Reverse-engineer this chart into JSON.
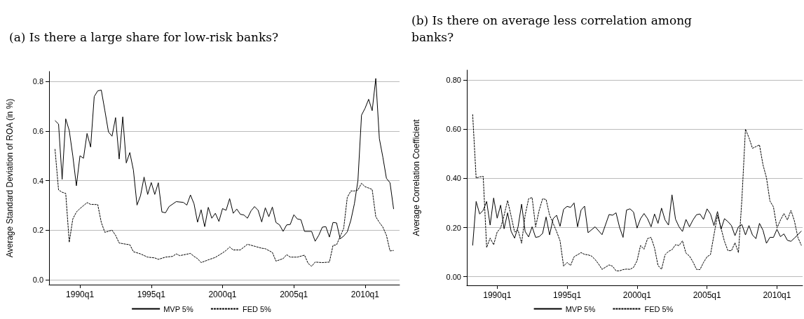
{
  "chart_data": [
    {
      "type": "line",
      "title": "(a) Is there a large share for low-risk banks?",
      "ylabel": "Average Standard Deviation of ROA (in %)",
      "xlim": [
        "1987-11",
        "2012-06"
      ],
      "xticks": [
        {
          "value": "1990-01",
          "label": "1990q1"
        },
        {
          "value": "1995-01",
          "label": "1995q1"
        },
        {
          "value": "2000-01",
          "label": "2000q1"
        },
        {
          "value": "2005-01",
          "label": "2005q1"
        },
        {
          "value": "2010-01",
          "label": "2010q1"
        }
      ],
      "ylim": [
        -0.02,
        0.84
      ],
      "yticks": [
        {
          "value": 0,
          "label": "0.0"
        },
        0.2,
        0.4,
        0.6,
        0.8
      ],
      "grid": "y",
      "legend": "bottom",
      "marker": "none",
      "series": [
        {
          "name": "MVP 5%",
          "color": "#000000",
          "line_style": "solid",
          "x": [
            "1988-04",
            "1988-07",
            "1988-10",
            "1989-01",
            "1989-04",
            "1989-07",
            "1989-10",
            "1990-01",
            "1990-04",
            "1990-07",
            "1990-10",
            "1991-01",
            "1991-04",
            "1991-07",
            "1991-10",
            "1992-01",
            "1992-04",
            "1992-07",
            "1992-10",
            "1993-01",
            "1993-04",
            "1993-07",
            "1993-10",
            "1994-01",
            "1994-04",
            "1994-07",
            "1994-10",
            "1995-01",
            "1995-04",
            "1995-07",
            "1995-10",
            "1996-01",
            "1996-04",
            "1996-10",
            "1997-04",
            "1997-07",
            "1997-10",
            "1998-01",
            "1998-04",
            "1998-07",
            "1998-10",
            "1999-01",
            "1999-04",
            "1999-07",
            "1999-10",
            "2000-01",
            "2000-04",
            "2000-07",
            "2000-10",
            "2001-01",
            "2001-04",
            "2001-07",
            "2001-10",
            "2002-01",
            "2002-04",
            "2002-07",
            "2002-10",
            "2003-01",
            "2003-04",
            "2003-07",
            "2003-10",
            "2004-01",
            "2004-04",
            "2004-07",
            "2004-10",
            "2005-01",
            "2005-04",
            "2005-07",
            "2005-10",
            "2006-04",
            "2006-07",
            "2006-10",
            "2007-01",
            "2007-04",
            "2007-07",
            "2007-10",
            "2008-01",
            "2008-04",
            "2008-07",
            "2008-10",
            "2009-01",
            "2009-04",
            "2009-07",
            "2009-10",
            "2010-01",
            "2010-04",
            "2010-07",
            "2010-10",
            "2011-01",
            "2011-04",
            "2011-07",
            "2011-10",
            "2012-01"
          ],
          "values": [
            0.642,
            0.628,
            0.405,
            0.649,
            0.602,
            0.5,
            0.379,
            0.5,
            0.49,
            0.59,
            0.535,
            0.739,
            0.762,
            0.765,
            0.682,
            0.596,
            0.579,
            0.654,
            0.487,
            0.657,
            0.471,
            0.513,
            0.442,
            0.301,
            0.339,
            0.414,
            0.344,
            0.392,
            0.344,
            0.391,
            0.273,
            0.27,
            0.295,
            0.315,
            0.312,
            0.301,
            0.342,
            0.306,
            0.232,
            0.282,
            0.214,
            0.292,
            0.248,
            0.268,
            0.235,
            0.287,
            0.28,
            0.327,
            0.268,
            0.285,
            0.264,
            0.261,
            0.248,
            0.278,
            0.295,
            0.28,
            0.233,
            0.29,
            0.254,
            0.293,
            0.231,
            0.221,
            0.195,
            0.221,
            0.223,
            0.262,
            0.245,
            0.242,
            0.195,
            0.195,
            0.155,
            0.179,
            0.212,
            0.214,
            0.172,
            0.231,
            0.229,
            0.165,
            0.176,
            0.193,
            0.24,
            0.306,
            0.4,
            0.664,
            0.692,
            0.728,
            0.682,
            0.812,
            0.569,
            0.494,
            0.409,
            0.391,
            0.285
          ]
        },
        {
          "name": "FED 5%",
          "color": "#000000",
          "line_style": "dashed",
          "x": [
            "1988-04",
            "1988-07",
            "1988-10",
            "1989-01",
            "1989-04",
            "1989-07",
            "1989-10",
            "1990-01",
            "1990-07",
            "1990-10",
            "1991-04",
            "1991-07",
            "1991-10",
            "1992-04",
            "1992-07",
            "1992-10",
            "1993-04",
            "1993-07",
            "1993-10",
            "1994-04",
            "1994-10",
            "1995-04",
            "1995-07",
            "1996-01",
            "1996-07",
            "1996-10",
            "1997-01",
            "1997-10",
            "1998-01",
            "1998-04",
            "1998-07",
            "1999-01",
            "1999-07",
            "2000-01",
            "2000-04",
            "2000-07",
            "2000-10",
            "2001-04",
            "2001-10",
            "2002-04",
            "2002-10",
            "2003-01",
            "2003-07",
            "2003-10",
            "2004-01",
            "2004-04",
            "2004-07",
            "2004-10",
            "2005-04",
            "2005-10",
            "2006-01",
            "2006-04",
            "2006-07",
            "2007-01",
            "2007-07",
            "2007-10",
            "2008-01",
            "2008-04",
            "2008-07",
            "2008-10",
            "2009-01",
            "2009-04",
            "2009-07",
            "2009-10",
            "2010-01",
            "2010-04",
            "2010-07",
            "2010-10",
            "2011-01",
            "2011-04",
            "2011-07",
            "2011-10",
            "2012-01"
          ],
          "values": [
            0.527,
            0.362,
            0.353,
            0.348,
            0.151,
            0.245,
            0.273,
            0.287,
            0.311,
            0.304,
            0.303,
            0.231,
            0.191,
            0.2,
            0.179,
            0.148,
            0.143,
            0.141,
            0.113,
            0.104,
            0.091,
            0.088,
            0.082,
            0.091,
            0.094,
            0.104,
            0.097,
            0.106,
            0.094,
            0.085,
            0.069,
            0.08,
            0.09,
            0.108,
            0.118,
            0.132,
            0.12,
            0.12,
            0.143,
            0.135,
            0.127,
            0.125,
            0.11,
            0.075,
            0.08,
            0.085,
            0.101,
            0.091,
            0.091,
            0.099,
            0.066,
            0.054,
            0.071,
            0.069,
            0.071,
            0.138,
            0.141,
            0.174,
            0.207,
            0.332,
            0.358,
            0.358,
            0.362,
            0.389,
            0.375,
            0.37,
            0.364,
            0.254,
            0.231,
            0.212,
            0.179,
            0.116,
            0.118
          ]
        }
      ]
    },
    {
      "type": "line",
      "title": "(b) Is there on average less correlation among banks?",
      "ylabel": "Average Correlation Coefficient",
      "xlim": [
        "1987-11",
        "2011-11"
      ],
      "xticks": [
        {
          "value": "1990-01",
          "label": "1990q1"
        },
        {
          "value": "1995-01",
          "label": "1995q1"
        },
        {
          "value": "2000-01",
          "label": "2000q1"
        },
        {
          "value": "2005-01",
          "label": "2005q1"
        },
        {
          "value": "2010-01",
          "label": "2010q1"
        }
      ],
      "ylim": [
        -0.035,
        0.84
      ],
      "yticks": [
        {
          "value": 0,
          "label": "0.00"
        },
        {
          "value": 0.2,
          "label": "0.20"
        },
        {
          "value": 0.4,
          "label": "0.40"
        },
        {
          "value": 0.6,
          "label": "0.60"
        },
        {
          "value": 0.8,
          "label": "0.80"
        }
      ],
      "grid": "y",
      "legend": "bottom",
      "marker": "none",
      "series": [
        {
          "name": "MVP 5%",
          "color": "#000000",
          "line_style": "solid",
          "x": [
            "1988-04",
            "1988-07",
            "1988-10",
            "1989-01",
            "1989-04",
            "1989-07",
            "1989-10",
            "1990-01",
            "1990-04",
            "1990-07",
            "1990-10",
            "1991-01",
            "1991-04",
            "1991-07",
            "1991-10",
            "1992-01",
            "1992-04",
            "1992-07",
            "1992-10",
            "1993-01",
            "1993-04",
            "1993-07",
            "1993-10",
            "1994-01",
            "1994-04",
            "1994-07",
            "1994-10",
            "1995-01",
            "1995-04",
            "1995-07",
            "1995-10",
            "1996-01",
            "1996-04",
            "1996-07",
            "1997-01",
            "1997-07",
            "1998-01",
            "1998-04",
            "1998-07",
            "1998-10",
            "1999-01",
            "1999-04",
            "1999-07",
            "1999-10",
            "2000-01",
            "2000-04",
            "2000-07",
            "2000-10",
            "2001-01",
            "2001-04",
            "2001-07",
            "2001-10",
            "2002-01",
            "2002-04",
            "2002-07",
            "2002-10",
            "2003-01",
            "2003-04",
            "2003-07",
            "2003-10",
            "2004-01",
            "2004-04",
            "2004-07",
            "2004-10",
            "2005-01",
            "2005-04",
            "2005-07",
            "2005-10",
            "2006-01",
            "2006-04",
            "2006-07",
            "2006-10",
            "2007-01",
            "2007-04",
            "2007-07",
            "2007-10",
            "2008-01",
            "2008-04",
            "2008-07",
            "2008-10",
            "2009-01",
            "2009-04",
            "2009-07",
            "2009-10",
            "2010-01",
            "2010-04",
            "2010-07",
            "2010-10",
            "2011-01",
            "2011-04",
            "2011-07",
            "2011-10"
          ],
          "values": [
            0.127,
            0.306,
            0.255,
            0.27,
            0.306,
            0.21,
            0.32,
            0.238,
            0.291,
            0.195,
            0.26,
            0.184,
            0.157,
            0.203,
            0.295,
            0.184,
            0.162,
            0.203,
            0.16,
            0.163,
            0.176,
            0.243,
            0.17,
            0.236,
            0.25,
            0.205,
            0.274,
            0.286,
            0.282,
            0.3,
            0.203,
            0.271,
            0.287,
            0.179,
            0.203,
            0.171,
            0.253,
            0.25,
            0.26,
            0.201,
            0.16,
            0.271,
            0.276,
            0.263,
            0.198,
            0.236,
            0.257,
            0.236,
            0.203,
            0.255,
            0.217,
            0.279,
            0.231,
            0.21,
            0.333,
            0.234,
            0.203,
            0.184,
            0.233,
            0.203,
            0.231,
            0.252,
            0.255,
            0.233,
            0.276,
            0.255,
            0.208,
            0.265,
            0.193,
            0.236,
            0.224,
            0.208,
            0.167,
            0.203,
            0.212,
            0.17,
            0.208,
            0.17,
            0.155,
            0.217,
            0.189,
            0.136,
            0.16,
            0.16,
            0.193,
            0.163,
            0.174,
            0.148,
            0.144,
            0.157,
            0.171,
            0.186
          ]
        },
        {
          "name": "FED 5%",
          "color": "#000000",
          "line_style": "dashed",
          "x": [
            "1988-04",
            "1988-07",
            "1988-10",
            "1989-01",
            "1989-04",
            "1989-07",
            "1989-10",
            "1990-01",
            "1990-04",
            "1990-07",
            "1990-10",
            "1991-01",
            "1991-04",
            "1991-07",
            "1991-10",
            "1992-01",
            "1992-04",
            "1992-07",
            "1992-10",
            "1993-01",
            "1993-04",
            "1993-07",
            "1993-10",
            "1994-01",
            "1994-04",
            "1994-07",
            "1994-10",
            "1995-01",
            "1995-04",
            "1995-07",
            "1996-01",
            "1996-04",
            "1996-07",
            "1996-10",
            "1997-01",
            "1997-04",
            "1997-07",
            "1997-10",
            "1998-01",
            "1998-04",
            "1998-07",
            "1998-10",
            "1999-01",
            "1999-04",
            "1999-07",
            "1999-10",
            "2000-01",
            "2000-04",
            "2000-07",
            "2000-10",
            "2001-01",
            "2001-04",
            "2001-07",
            "2001-10",
            "2002-01",
            "2002-04",
            "2002-07",
            "2002-10",
            "2003-01",
            "2003-04",
            "2003-07",
            "2003-10",
            "2004-01",
            "2004-04",
            "2004-07",
            "2004-10",
            "2005-01",
            "2005-04",
            "2005-07",
            "2005-10",
            "2006-01",
            "2006-04",
            "2006-07",
            "2006-10",
            "2007-01",
            "2007-04",
            "2007-07",
            "2007-10",
            "2008-01",
            "2008-04",
            "2008-07",
            "2008-10",
            "2009-01",
            "2009-04",
            "2009-07",
            "2009-10",
            "2010-01",
            "2010-04",
            "2010-07",
            "2010-10",
            "2011-01",
            "2011-04",
            "2011-07",
            "2011-10"
          ],
          "values": [
            0.66,
            0.401,
            0.406,
            0.408,
            0.119,
            0.157,
            0.13,
            0.182,
            0.198,
            0.25,
            0.31,
            0.246,
            0.182,
            0.189,
            0.136,
            0.25,
            0.317,
            0.322,
            0.203,
            0.27,
            0.317,
            0.314,
            0.25,
            0.217,
            0.184,
            0.146,
            0.043,
            0.058,
            0.046,
            0.081,
            0.098,
            0.091,
            0.089,
            0.084,
            0.07,
            0.052,
            0.03,
            0.039,
            0.048,
            0.043,
            0.024,
            0.024,
            0.029,
            0.031,
            0.03,
            0.038,
            0.065,
            0.127,
            0.112,
            0.155,
            0.16,
            0.117,
            0.046,
            0.03,
            0.089,
            0.103,
            0.11,
            0.13,
            0.127,
            0.146,
            0.096,
            0.084,
            0.06,
            0.03,
            0.029,
            0.058,
            0.081,
            0.09,
            0.17,
            0.25,
            0.198,
            0.144,
            0.106,
            0.106,
            0.138,
            0.098,
            0.317,
            0.6,
            0.565,
            0.522,
            0.529,
            0.536,
            0.455,
            0.403,
            0.308,
            0.284,
            0.198,
            0.23,
            0.257,
            0.231,
            0.27,
            0.227,
            0.16,
            0.127
          ]
        }
      ]
    }
  ]
}
